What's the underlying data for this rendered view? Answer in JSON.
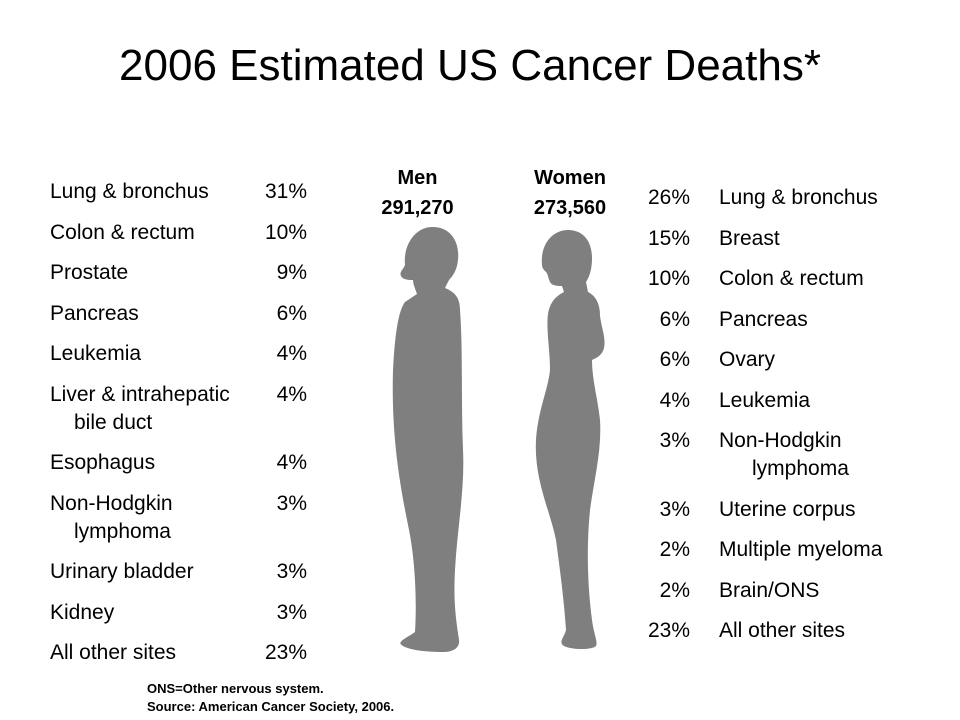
{
  "title": "2006 Estimated US Cancer Deaths*",
  "colors": {
    "silhouette": "#7f7f7f",
    "text": "#000000",
    "background": "#ffffff"
  },
  "men": {
    "label": "Men",
    "total": "291,270",
    "icon": "male-silhouette"
  },
  "women": {
    "label": "Women",
    "total": "273,560",
    "icon": "female-silhouette"
  },
  "chart_data": {
    "type": "table",
    "title": "2006 Estimated US Cancer Deaths*",
    "series": [
      {
        "name": "Men",
        "total": 291270,
        "categories": [
          "Lung & bronchus",
          "Colon & rectum",
          "Prostate",
          "Pancreas",
          "Leukemia",
          "Liver & intrahepatic bile duct",
          "Esophagus",
          "Non-Hodgkin lymphoma",
          "Urinary bladder",
          "Kidney",
          "All other sites"
        ],
        "values": [
          31,
          10,
          9,
          6,
          4,
          4,
          4,
          3,
          3,
          3,
          23
        ]
      },
      {
        "name": "Women",
        "total": 273560,
        "categories": [
          "Lung & bronchus",
          "Breast",
          "Colon & rectum",
          "Pancreas",
          "Ovary",
          "Leukemia",
          "Non-Hodgkin lymphoma",
          "Uterine corpus",
          "Multiple myeloma",
          "Brain/ONS",
          "All other sites"
        ],
        "values": [
          26,
          15,
          10,
          6,
          6,
          4,
          3,
          3,
          2,
          2,
          23
        ]
      }
    ]
  },
  "men_rows": [
    {
      "site": "Lung & bronchus",
      "pct": "31%"
    },
    {
      "site": "Colon & rectum",
      "pct": "10%"
    },
    {
      "site": "Prostate",
      "pct": "9%"
    },
    {
      "site": "Pancreas",
      "pct": "6%"
    },
    {
      "site": "Leukemia",
      "pct": "4%"
    },
    {
      "site": "Liver & intrahepatic",
      "site2": "bile duct",
      "pct": "4%"
    },
    {
      "site": "Esophagus",
      "pct": "4%"
    },
    {
      "site": "Non-Hodgkin",
      "site2": "lymphoma",
      "pct": "3%"
    },
    {
      "site": "Urinary bladder",
      "pct": "3%"
    },
    {
      "site": "Kidney",
      "pct": "3%"
    },
    {
      "site": "All other sites",
      "pct": "23%"
    }
  ],
  "women_rows": [
    {
      "site": "Lung & bronchus",
      "pct": "26%"
    },
    {
      "site": "Breast",
      "pct": "15%"
    },
    {
      "site": "Colon & rectum",
      "pct": "10%"
    },
    {
      "site": "Pancreas",
      "pct": "6%"
    },
    {
      "site": "Ovary",
      "pct": "6%"
    },
    {
      "site": "Leukemia",
      "pct": "4%"
    },
    {
      "site": "Non-Hodgkin",
      "site2": "lymphoma",
      "pct": "3%"
    },
    {
      "site": "Uterine corpus",
      "pct": "3%"
    },
    {
      "site": "Multiple myeloma",
      "pct": "2%"
    },
    {
      "site": "Brain/ONS",
      "pct": "2%"
    },
    {
      "site": "All other sites",
      "pct": "23%"
    }
  ],
  "footnote": {
    "line1": "ONS=Other nervous system.",
    "line2": "Source: American Cancer Society, 2006."
  }
}
